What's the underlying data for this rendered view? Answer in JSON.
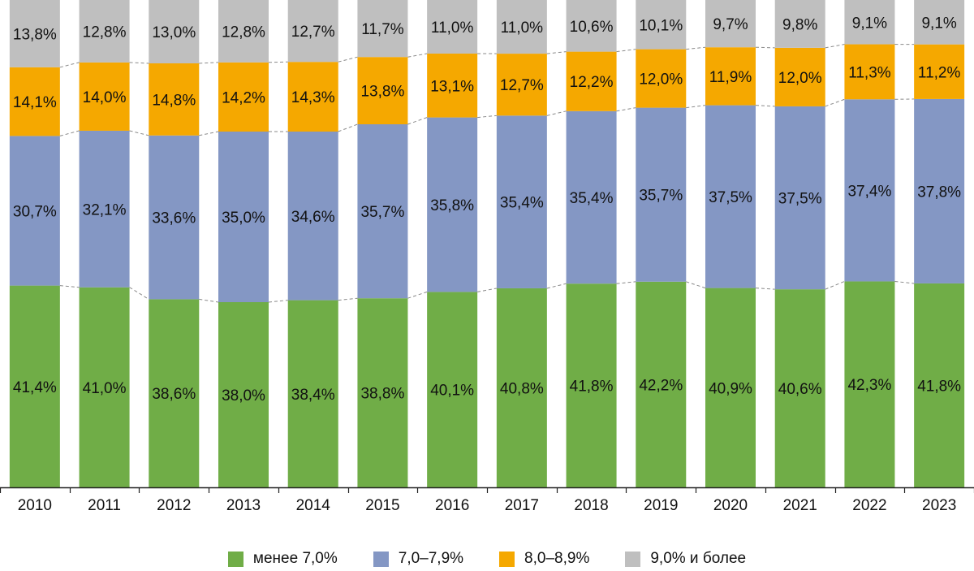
{
  "chart_data": {
    "type": "bar",
    "stacked": true,
    "normalized": true,
    "categories": [
      "2010",
      "2011",
      "2012",
      "2013",
      "2014",
      "2015",
      "2016",
      "2017",
      "2018",
      "2019",
      "2020",
      "2021",
      "2022",
      "2023"
    ],
    "series": [
      {
        "name": "менее 7,0%",
        "color": "#70ad47",
        "values": [
          41.4,
          41.0,
          38.6,
          38.0,
          38.4,
          38.8,
          40.1,
          40.8,
          41.8,
          42.2,
          40.9,
          40.6,
          42.3,
          41.8
        ],
        "labels": [
          "41,4%",
          "41,0%",
          "38,6%",
          "38,0%",
          "38,4%",
          "38,8%",
          "40,1%",
          "40,8%",
          "41,8%",
          "42,2%",
          "40,9%",
          "40,6%",
          "42,3%",
          "41,8%"
        ]
      },
      {
        "name": "7,0–7,9%",
        "color": "#8497c4",
        "values": [
          30.7,
          32.1,
          33.6,
          35.0,
          34.6,
          35.7,
          35.8,
          35.4,
          35.4,
          35.7,
          37.5,
          37.5,
          37.4,
          37.8
        ],
        "labels": [
          "30,7%",
          "32,1%",
          "33,6%",
          "35,0%",
          "34,6%",
          "35,7%",
          "35,8%",
          "35,4%",
          "35,4%",
          "35,7%",
          "37,5%",
          "37,5%",
          "37,4%",
          "37,8%"
        ]
      },
      {
        "name": "8,0–8,9%",
        "color": "#f5a800",
        "values": [
          14.1,
          14.0,
          14.8,
          14.2,
          14.3,
          13.8,
          13.1,
          12.7,
          12.2,
          12.0,
          11.9,
          12.0,
          11.3,
          11.2
        ],
        "labels": [
          "14,1%",
          "14,0%",
          "14,8%",
          "14,2%",
          "14,3%",
          "13,8%",
          "13,1%",
          "12,7%",
          "12,2%",
          "12,0%",
          "11,9%",
          "12,0%",
          "11,3%",
          "11,2%"
        ]
      },
      {
        "name": "9,0% и более",
        "color": "#bfbfbf",
        "values": [
          13.8,
          12.8,
          13.0,
          12.8,
          12.7,
          11.7,
          11.0,
          11.0,
          10.6,
          10.1,
          9.7,
          9.8,
          9.1,
          9.1
        ],
        "labels": [
          "13,8%",
          "12,8%",
          "13,0%",
          "12,8%",
          "12,7%",
          "11,7%",
          "11,0%",
          "11,0%",
          "10,6%",
          "10,1%",
          "9,7%",
          "9,8%",
          "9,1%",
          "9,1%"
        ]
      }
    ],
    "title": "",
    "xlabel": "",
    "ylabel": "",
    "ylim": [
      0,
      100
    ],
    "grid": false,
    "legend_position": "bottom",
    "series_connector_lines": true
  }
}
